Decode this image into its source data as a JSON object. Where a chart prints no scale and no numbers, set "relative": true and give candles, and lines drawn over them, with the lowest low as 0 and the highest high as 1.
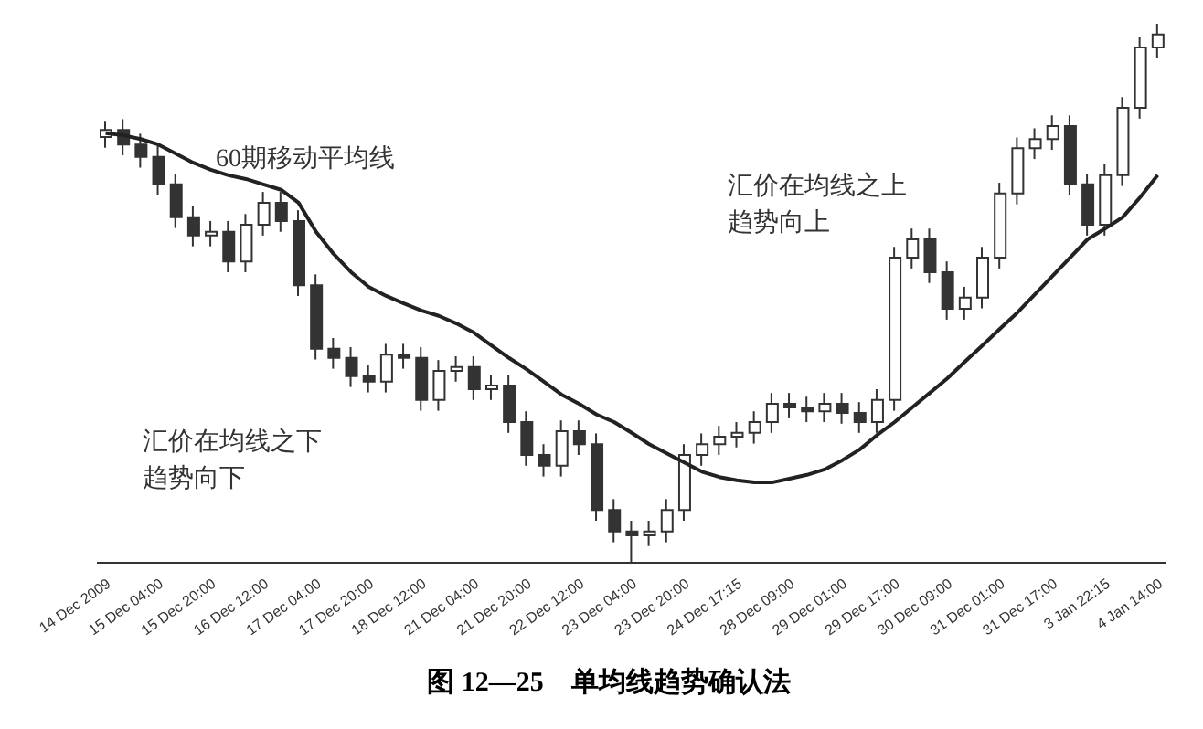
{
  "chart_data": {
    "type": "candlestick",
    "title": "图 12—25　单均线趋势确认法",
    "relative": true,
    "color": "#333333",
    "grid": false,
    "legend": false,
    "categories": [
      "14 Dec 2009",
      null,
      null,
      "15 Dec 04:00",
      null,
      null,
      "15 Dec 20:00",
      null,
      null,
      "16 Dec 12:00",
      null,
      null,
      "17 Dec 04:00",
      null,
      null,
      "17 Dec 20:00",
      null,
      null,
      "18 Dec 12:00",
      null,
      null,
      "21 Dec 04:00",
      null,
      null,
      "21 Dec 20:00",
      null,
      null,
      "22 Dec 12:00",
      null,
      null,
      "23 Dec 04:00",
      null,
      null,
      "23 Dec 20:00",
      null,
      null,
      "24 Dec 17:15",
      null,
      null,
      "28 Dec 09:00",
      null,
      null,
      "29 Dec 01:00",
      null,
      null,
      "29 Dec 17:00",
      null,
      null,
      "30 Dec 09:00",
      null,
      null,
      "31 Dec 01:00",
      null,
      null,
      "31 Dec 17:00",
      null,
      null,
      "3 Jan 22:15",
      null,
      null,
      "4 Jan 14:00"
    ],
    "ohlc": [
      [
        0.79,
        0.82,
        0.77,
        0.803
      ],
      [
        0.803,
        0.823,
        0.756,
        0.776
      ],
      [
        0.776,
        0.796,
        0.733,
        0.753
      ],
      [
        0.753,
        0.773,
        0.682,
        0.702
      ],
      [
        0.702,
        0.722,
        0.621,
        0.641
      ],
      [
        0.641,
        0.661,
        0.587,
        0.607
      ],
      [
        0.607,
        0.634,
        0.587,
        0.614
      ],
      [
        0.614,
        0.634,
        0.539,
        0.559
      ],
      [
        0.559,
        0.647,
        0.539,
        0.627
      ],
      [
        0.627,
        0.688,
        0.607,
        0.668
      ],
      [
        0.668,
        0.688,
        0.614,
        0.634
      ],
      [
        0.634,
        0.654,
        0.495,
        0.515
      ],
      [
        0.515,
        0.535,
        0.377,
        0.397
      ],
      [
        0.397,
        0.417,
        0.36,
        0.38
      ],
      [
        0.38,
        0.4,
        0.326,
        0.346
      ],
      [
        0.346,
        0.366,
        0.316,
        0.336
      ],
      [
        0.336,
        0.406,
        0.316,
        0.386
      ],
      [
        0.386,
        0.406,
        0.36,
        0.38
      ],
      [
        0.38,
        0.4,
        0.282,
        0.302
      ],
      [
        0.302,
        0.376,
        0.282,
        0.356
      ],
      [
        0.356,
        0.383,
        0.336,
        0.363
      ],
      [
        0.363,
        0.383,
        0.302,
        0.322
      ],
      [
        0.322,
        0.349,
        0.302,
        0.329
      ],
      [
        0.329,
        0.349,
        0.241,
        0.261
      ],
      [
        0.261,
        0.281,
        0.18,
        0.2
      ],
      [
        0.2,
        0.22,
        0.16,
        0.18
      ],
      [
        0.18,
        0.264,
        0.16,
        0.244
      ],
      [
        0.244,
        0.264,
        0.2,
        0.22
      ],
      [
        0.22,
        0.24,
        0.078,
        0.098
      ],
      [
        0.098,
        0.118,
        0.038,
        0.058
      ],
      [
        0.058,
        0.078,
        0.0,
        0.051
      ],
      [
        0.051,
        0.078,
        0.031,
        0.058
      ],
      [
        0.058,
        0.118,
        0.038,
        0.098
      ],
      [
        0.098,
        0.22,
        0.078,
        0.2
      ],
      [
        0.2,
        0.24,
        0.18,
        0.22
      ],
      [
        0.22,
        0.254,
        0.2,
        0.234
      ],
      [
        0.234,
        0.261,
        0.214,
        0.241
      ],
      [
        0.241,
        0.281,
        0.221,
        0.261
      ],
      [
        0.261,
        0.315,
        0.241,
        0.295
      ],
      [
        0.295,
        0.315,
        0.268,
        0.288
      ],
      [
        0.288,
        0.308,
        0.261,
        0.281
      ],
      [
        0.281,
        0.315,
        0.261,
        0.295
      ],
      [
        0.295,
        0.315,
        0.258,
        0.278
      ],
      [
        0.278,
        0.298,
        0.241,
        0.261
      ],
      [
        0.261,
        0.322,
        0.241,
        0.302
      ],
      [
        0.302,
        0.586,
        0.282,
        0.566
      ],
      [
        0.566,
        0.62,
        0.546,
        0.6
      ],
      [
        0.6,
        0.62,
        0.519,
        0.539
      ],
      [
        0.539,
        0.559,
        0.451,
        0.471
      ],
      [
        0.471,
        0.512,
        0.451,
        0.492
      ],
      [
        0.492,
        0.586,
        0.472,
        0.566
      ],
      [
        0.566,
        0.705,
        0.546,
        0.685
      ],
      [
        0.685,
        0.789,
        0.665,
        0.769
      ],
      [
        0.769,
        0.806,
        0.749,
        0.786
      ],
      [
        0.786,
        0.83,
        0.766,
        0.81
      ],
      [
        0.81,
        0.83,
        0.682,
        0.702
      ],
      [
        0.702,
        0.722,
        0.607,
        0.627
      ],
      [
        0.627,
        0.739,
        0.607,
        0.719
      ],
      [
        0.719,
        0.864,
        0.699,
        0.844
      ],
      [
        0.844,
        0.976,
        0.824,
        0.956
      ],
      [
        0.956,
        1.0,
        0.936,
        0.98
      ]
    ],
    "series": [
      {
        "type": "line",
        "color": "#222222",
        "values": [
          0.797,
          0.793,
          0.786,
          0.776,
          0.759,
          0.742,
          0.729,
          0.719,
          0.712,
          0.702,
          0.692,
          0.668,
          0.614,
          0.573,
          0.539,
          0.512,
          0.495,
          0.481,
          0.468,
          0.458,
          0.444,
          0.427,
          0.403,
          0.38,
          0.359,
          0.336,
          0.312,
          0.295,
          0.275,
          0.261,
          0.241,
          0.22,
          0.203,
          0.186,
          0.169,
          0.159,
          0.153,
          0.149,
          0.149,
          0.156,
          0.163,
          0.173,
          0.19,
          0.21,
          0.237,
          0.261,
          0.288,
          0.315,
          0.342,
          0.373,
          0.403,
          0.434,
          0.464,
          0.498,
          0.532,
          0.566,
          0.6,
          0.62,
          0.641,
          0.678,
          0.719
        ]
      }
    ],
    "annotations": [
      "60期移动平均线",
      "汇价在均线之上趋势向上",
      "汇价在均线之下趋势向下"
    ]
  }
}
